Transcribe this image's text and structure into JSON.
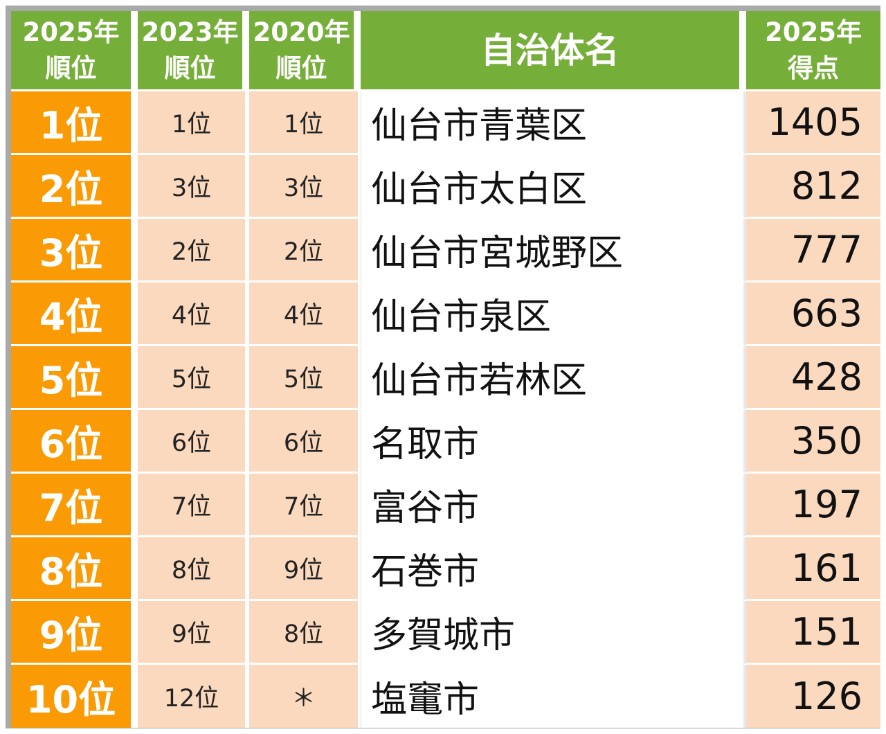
{
  "header": {
    "rank_2025": "2025年\n順位",
    "rank_2023": "2023年\n順位",
    "rank_2020": "2020年\n順位",
    "municipality": "自治体名",
    "score_2025": "2025年\n得点"
  },
  "rows": [
    {
      "rank_2025": "1位",
      "rank_2023": "1位",
      "rank_2020": "1位",
      "name": "仙台市青葉区",
      "score": "1405"
    },
    {
      "rank_2025": "2位",
      "rank_2023": "3位",
      "rank_2020": "3位",
      "name": "仙台市太白区",
      "score": "812"
    },
    {
      "rank_2025": "3位",
      "rank_2023": "2位",
      "rank_2020": "2位",
      "name": "仙台市宮城野区",
      "score": "777"
    },
    {
      "rank_2025": "4位",
      "rank_2023": "4位",
      "rank_2020": "4位",
      "name": "仙台市泉区",
      "score": "663"
    },
    {
      "rank_2025": "5位",
      "rank_2023": "5位",
      "rank_2020": "5位",
      "name": "仙台市若林区",
      "score": "428"
    },
    {
      "rank_2025": "6位",
      "rank_2023": "6位",
      "rank_2020": "6位",
      "name": "名取市",
      "score": "350"
    },
    {
      "rank_2025": "7位",
      "rank_2023": "7位",
      "rank_2020": "7位",
      "name": "富谷市",
      "score": "197"
    },
    {
      "rank_2025": "8位",
      "rank_2023": "8位",
      "rank_2020": "9位",
      "name": "石巻市",
      "score": "161"
    },
    {
      "rank_2025": "9位",
      "rank_2023": "9位",
      "rank_2020": "8位",
      "name": "多賀城市",
      "score": "151"
    },
    {
      "rank_2025": "10位",
      "rank_2023": "12位",
      "rank_2020": "＊",
      "name": "塩竃市",
      "score": "126"
    }
  ],
  "colors": {
    "header_green": "#76ae3a",
    "rank_orange": "#fa9a05",
    "cell_peach": "#fbd9bf",
    "frame_gray": "#a9a9a9"
  }
}
